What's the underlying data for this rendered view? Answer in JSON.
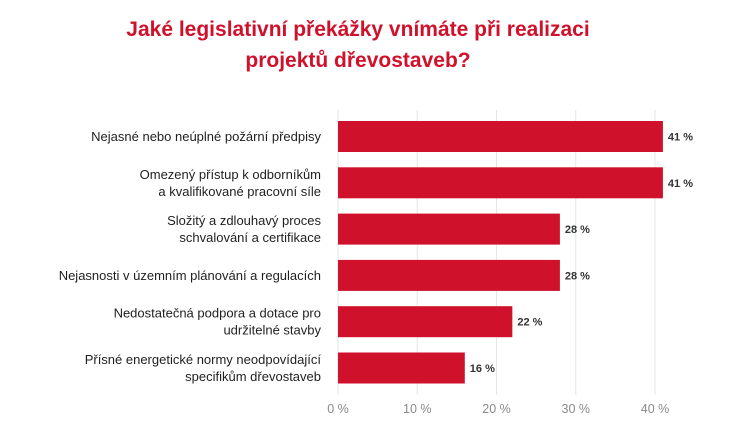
{
  "title_lines": [
    "Jaké legislativní překážky vnímáte při realizaci",
    "projektů dřevostaveb?"
  ],
  "colors": {
    "bar": "#d0112b",
    "title": "#d0112b",
    "grid": "#e6e6e6"
  },
  "chart_data": {
    "type": "bar",
    "orientation": "horizontal",
    "categories": [
      [
        "Nejasné nebo neúplné požární předpisy"
      ],
      [
        "Omezený přístup k odborníkům",
        "a kvalifikované pracovní síle"
      ],
      [
        "Složitý a zdlouhavý proces",
        "schvalování a certifikace"
      ],
      [
        "Nejasnosti v územním plánování a regulacích"
      ],
      [
        "Nedostatečná podpora a dotace pro",
        "udržitelné stavby"
      ],
      [
        "Přísné energetické normy neodpovídající",
        "specifikům dřevostaveb"
      ]
    ],
    "values": [
      41,
      41,
      28,
      28,
      22,
      16
    ],
    "value_labels": [
      "41 %",
      "41 %",
      "28 %",
      "28 %",
      "22 %",
      "16 %"
    ],
    "xlim": [
      0,
      40
    ],
    "xticks": [
      0,
      10,
      20,
      30,
      40
    ],
    "xtick_labels": [
      "0 %",
      "10 %",
      "20 %",
      "30 %",
      "40 %"
    ],
    "grid": true
  }
}
